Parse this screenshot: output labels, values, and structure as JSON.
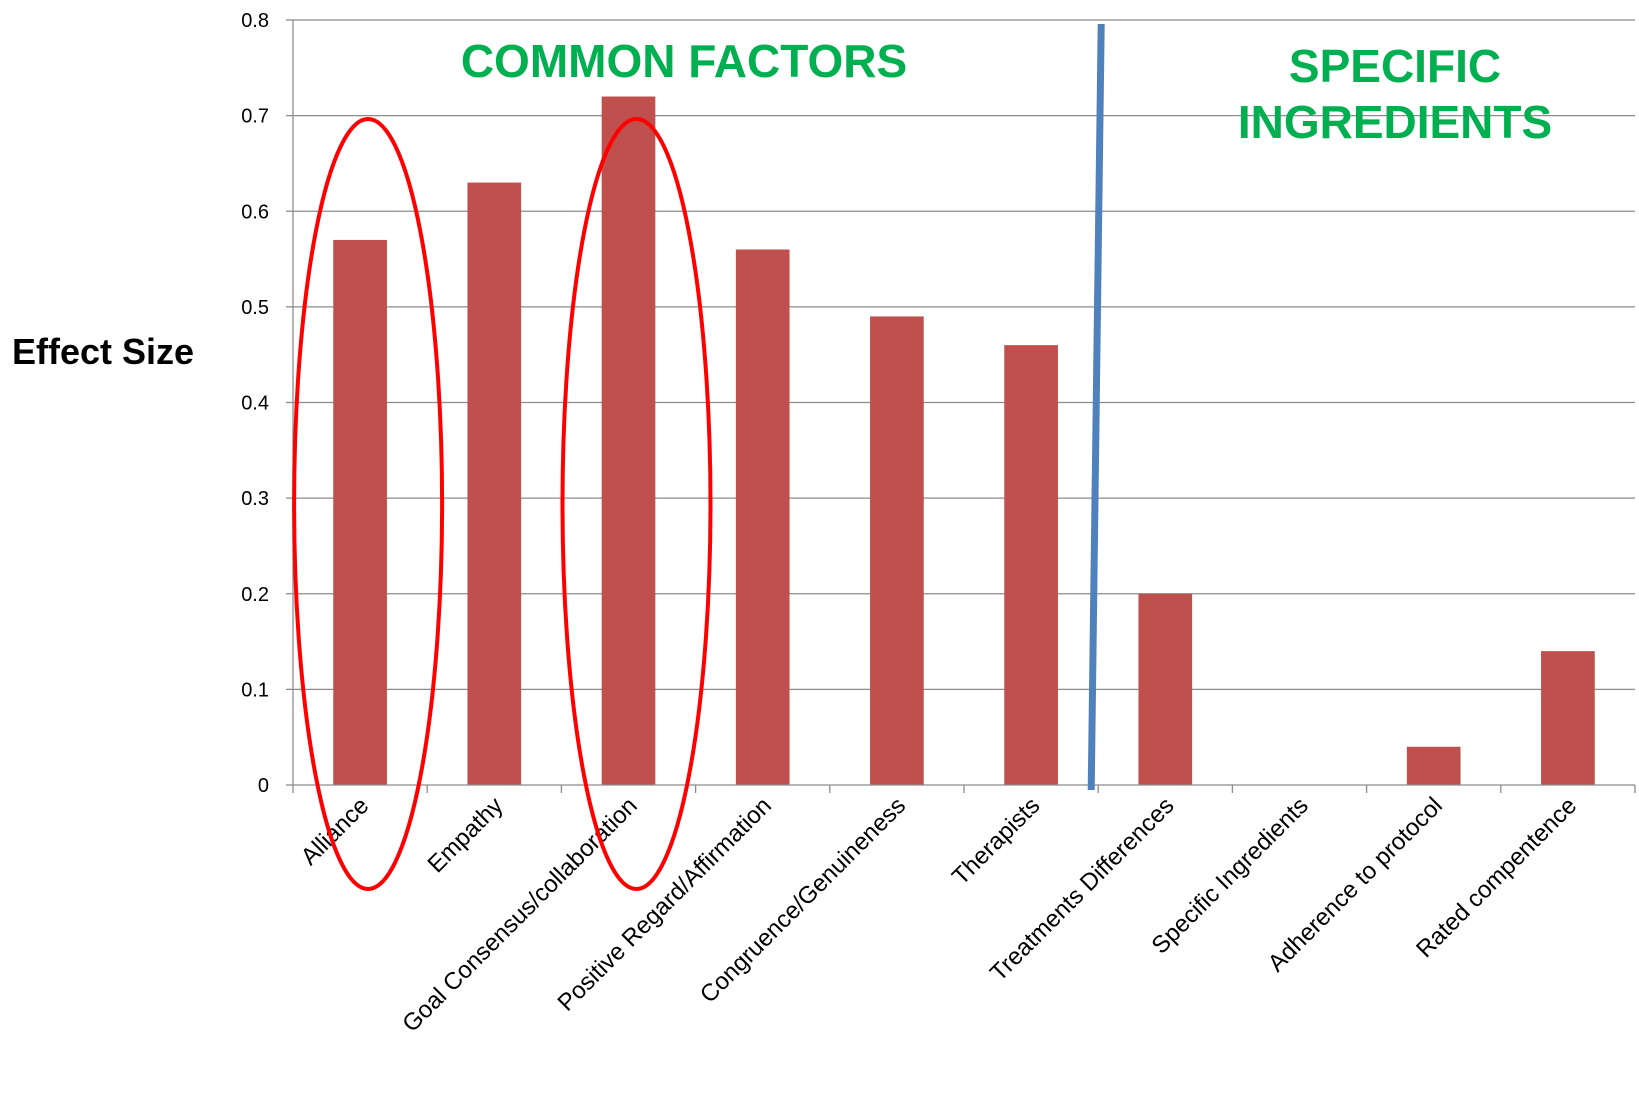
{
  "chart_data": {
    "type": "bar",
    "categories": [
      "Alliance",
      "Empathy",
      "Goal Consensus/collaboration",
      "Positive Regard/Affirmation",
      "Congruence/Genuineness",
      "Therapists",
      "Treatments Differences",
      "Specific Ingredients",
      "Adherence to protocol",
      "Rated compentence"
    ],
    "values": [
      0.57,
      0.63,
      0.72,
      0.56,
      0.49,
      0.46,
      0.2,
      0.0,
      0.04,
      0.14
    ],
    "ylabel": "Effect Size",
    "xlabel": "",
    "ylim": [
      0,
      0.8
    ],
    "yticks": [
      "0",
      "0.1",
      "0.2",
      "0.3",
      "0.4",
      "0.5",
      "0.6",
      "0.7",
      "0.8"
    ],
    "grid": true,
    "legend": "none",
    "annotations": {
      "common_factors": "COMMON FACTORS",
      "specific_line1": "SPECIFIC",
      "specific_line2": "INGREDIENTS"
    },
    "highlighted_categories": [
      "Alliance",
      "Goal Consensus/collaboration"
    ],
    "divider_after_category": "Therapists"
  },
  "colors": {
    "bar": "#c0504d",
    "grid": "#8c8c8c",
    "axis": "#8c8c8c",
    "annotation": "#00b050",
    "highlight": "#ff0000",
    "divider": "#4f81bd"
  }
}
